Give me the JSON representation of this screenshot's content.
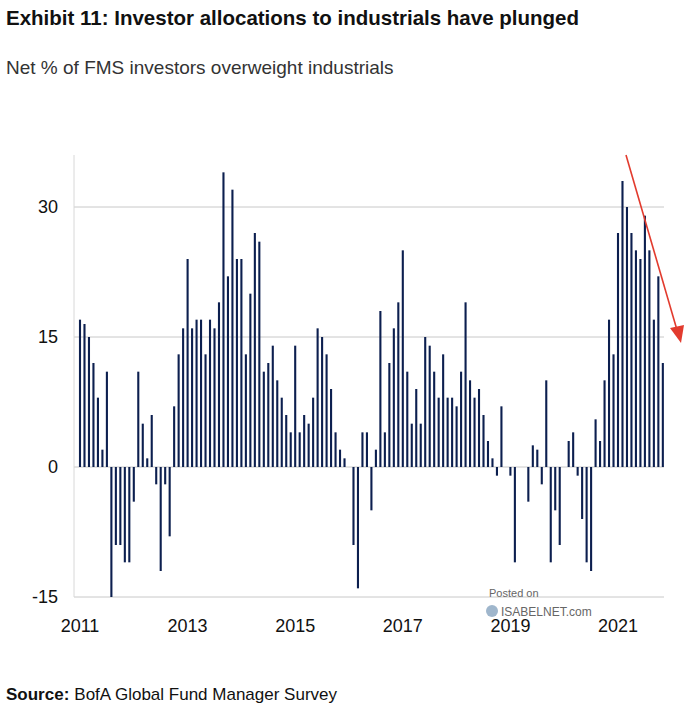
{
  "chart_data": {
    "type": "bar",
    "title": "Exhibit 11: Investor allocations to industrials have plunged",
    "subtitle": "Net % of FMS investors overweight industrials",
    "source_label": "Source:",
    "source": "BofA Global Fund Manager Survey",
    "annotations": [
      "Posted on",
      "ISABELNET.com"
    ],
    "categories": [
      "2011",
      null,
      null,
      null,
      null,
      null,
      null,
      null,
      null,
      null,
      null,
      null,
      null,
      null,
      null,
      null,
      null,
      null,
      null,
      null,
      null,
      null,
      null,
      null,
      "2013",
      null,
      null,
      null,
      null,
      null,
      null,
      null,
      null,
      null,
      null,
      null,
      null,
      null,
      null,
      null,
      null,
      null,
      null,
      null,
      null,
      null,
      null,
      null,
      "2015",
      null,
      null,
      null,
      null,
      null,
      null,
      null,
      null,
      null,
      null,
      null,
      null,
      null,
      null,
      null,
      null,
      null,
      null,
      null,
      null,
      null,
      null,
      null,
      "2017",
      null,
      null,
      null,
      null,
      null,
      null,
      null,
      null,
      null,
      null,
      null,
      null,
      null,
      null,
      null,
      null,
      null,
      null,
      null,
      null,
      null,
      null,
      null,
      "2019",
      null,
      null,
      null,
      null,
      null,
      null,
      null,
      null,
      null,
      null,
      null,
      null,
      null,
      null,
      null,
      null,
      null,
      null,
      null,
      null,
      null,
      null,
      null,
      "2021",
      null,
      null,
      null,
      null,
      null,
      null,
      null,
      null,
      null,
      null
    ],
    "values": [
      17,
      16.5,
      15,
      12,
      8,
      2,
      11,
      -15,
      -9,
      -9,
      -11,
      -11,
      -4,
      11,
      5,
      1,
      6,
      -2,
      -12,
      -2,
      -8,
      7,
      13,
      16,
      24,
      16,
      17,
      17,
      13,
      17,
      16,
      19,
      34,
      22,
      32,
      24,
      24,
      13,
      20,
      27,
      26,
      11,
      12,
      14,
      10,
      8,
      6,
      4,
      14,
      4,
      6,
      5,
      8,
      16,
      15,
      13,
      9,
      4,
      2,
      1,
      0,
      -9,
      -14,
      4,
      4,
      -5,
      2,
      18,
      4,
      12,
      16,
      19,
      25,
      11,
      5,
      9,
      5,
      15,
      14,
      11,
      8,
      13,
      8,
      8,
      7,
      11,
      19,
      10,
      8,
      9,
      6,
      3,
      1,
      -1,
      7,
      0,
      -1,
      -11,
      0,
      0,
      -4,
      2.5,
      2,
      -2,
      10,
      -11,
      -5,
      -9,
      0,
      3,
      4,
      -1,
      -6,
      -11,
      -12,
      5.5,
      3,
      10,
      17,
      13,
      27,
      33,
      30,
      27,
      25,
      24,
      29,
      25,
      17,
      22,
      12
    ],
    "color": "#0c1f4f",
    "ylim": [
      -15,
      36
    ],
    "yticks": [
      -15,
      0,
      15,
      30
    ],
    "grid": true
  }
}
